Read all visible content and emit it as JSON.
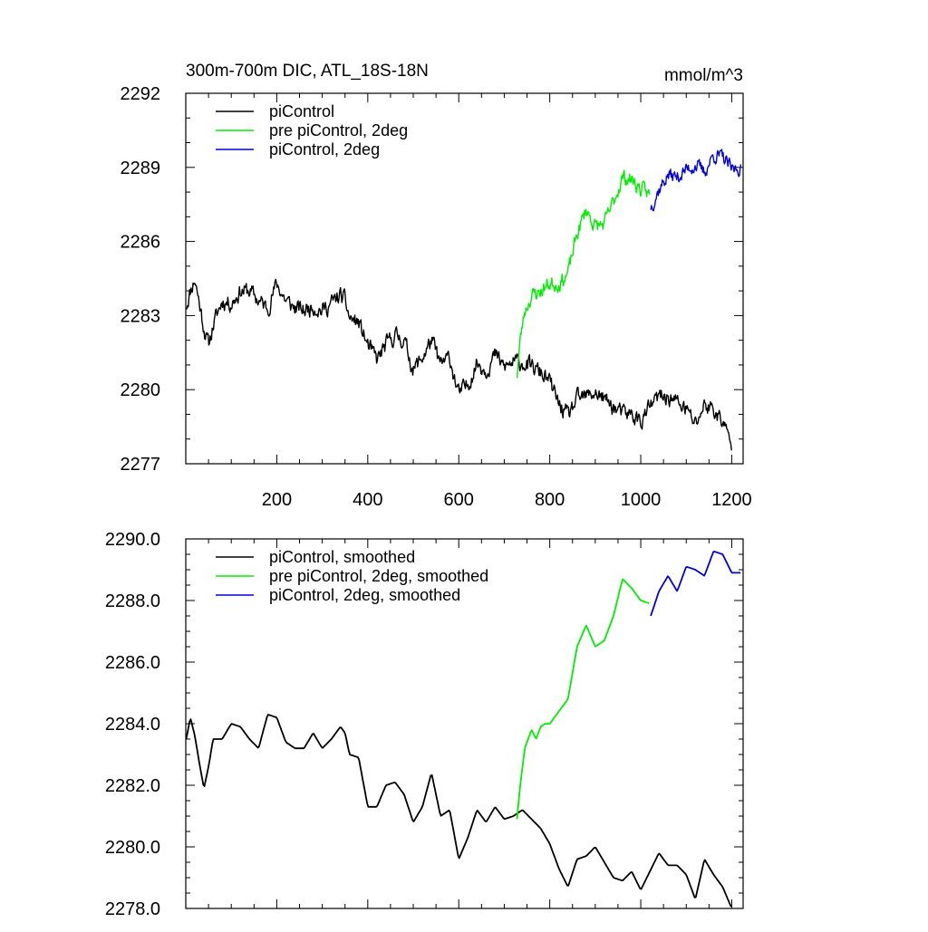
{
  "colors": {
    "piControl": "#000000",
    "pre": "#00ee00",
    "twodeg": "#0000e0",
    "axis": "#000000"
  },
  "chart_data": [
    {
      "type": "line",
      "title": "300m-700m DIC, ATL_18S-18N",
      "units": "mmol/m^3",
      "xlabel": "",
      "ylabel": "",
      "xlim": [
        0,
        1225
      ],
      "ylim": [
        2277,
        2292
      ],
      "xticks": [
        200,
        400,
        600,
        800,
        1000,
        1200
      ],
      "xtick_labels": [
        "200",
        "400",
        "600",
        "800",
        "1000",
        "1200"
      ],
      "yticks": [
        2277,
        2280,
        2283,
        2286,
        2289,
        2292
      ],
      "ytick_labels": [
        "2277",
        "2280",
        "2283",
        "2286",
        "2289",
        "2292"
      ],
      "legend_position": "top-left",
      "series": [
        {
          "name": "piControl",
          "color_key": "piControl",
          "noise": 0.35,
          "seed": 11,
          "x": [
            1,
            10,
            20,
            30,
            40,
            50,
            60,
            80,
            100,
            120,
            140,
            160,
            180,
            200,
            220,
            240,
            260,
            280,
            300,
            320,
            340,
            350,
            360,
            380,
            400,
            420,
            440,
            460,
            480,
            500,
            520,
            540,
            560,
            580,
            600,
            620,
            640,
            660,
            680,
            700,
            720,
            740,
            760,
            780,
            800,
            820,
            840,
            860,
            880,
            900,
            920,
            940,
            960,
            980,
            1000,
            1020,
            1040,
            1060,
            1080,
            1100,
            1120,
            1140,
            1160,
            1180,
            1200
          ],
          "y": [
            2283.4,
            2284.0,
            2284.5,
            2283.5,
            2282.5,
            2281.8,
            2282.6,
            2283.6,
            2283.5,
            2284.0,
            2284.0,
            2283.6,
            2283.3,
            2284.3,
            2283.6,
            2283.3,
            2283.2,
            2283.4,
            2283.2,
            2283.5,
            2283.8,
            2283.6,
            2282.9,
            2282.7,
            2281.8,
            2281.2,
            2281.8,
            2282.2,
            2282.0,
            2280.8,
            2281.3,
            2282.0,
            2281.0,
            2281.3,
            2279.8,
            2280.2,
            2281.1,
            2280.8,
            2281.4,
            2280.9,
            2281.1,
            2281.1,
            2280.9,
            2280.7,
            2280.3,
            2279.4,
            2278.9,
            2279.6,
            2279.7,
            2279.9,
            2279.6,
            2279.3,
            2279.0,
            2279.0,
            2278.7,
            2279.3,
            2279.7,
            2279.7,
            2279.5,
            2279.2,
            2278.6,
            2279.4,
            2279.2,
            2278.7,
            2277.7
          ]
        },
        {
          "name": "pre piControl, 2deg",
          "color_key": "pre",
          "noise": 0.32,
          "seed": 23,
          "x": [
            728,
            735,
            745,
            760,
            780,
            800,
            820,
            840,
            860,
            880,
            900,
            920,
            940,
            960,
            980,
            1000,
            1020
          ],
          "y": [
            2280.6,
            2282.0,
            2283.2,
            2283.8,
            2284.0,
            2284.3,
            2284.3,
            2284.7,
            2286.3,
            2287.3,
            2286.6,
            2286.7,
            2287.6,
            2288.6,
            2288.5,
            2288.1,
            2287.9
          ]
        },
        {
          "name": "piControl, 2deg",
          "color_key": "twodeg",
          "noise": 0.3,
          "seed": 37,
          "x": [
            1022,
            1040,
            1060,
            1080,
            1100,
            1120,
            1140,
            1160,
            1180,
            1200,
            1220
          ],
          "y": [
            2287.4,
            2288.1,
            2288.7,
            2288.6,
            2288.9,
            2289.1,
            2288.8,
            2289.5,
            2289.4,
            2288.9,
            2289.0
          ]
        }
      ]
    },
    {
      "type": "line",
      "title": "",
      "units": "",
      "xlabel": "",
      "ylabel": "",
      "xlim": [
        0,
        1225
      ],
      "ylim": [
        2278,
        2290
      ],
      "xticks": [
        200,
        400,
        600,
        800,
        1000,
        1200
      ],
      "xtick_labels": [],
      "yticks": [
        2278,
        2280,
        2282,
        2284,
        2286,
        2288,
        2290
      ],
      "ytick_labels": [
        "2278.0",
        "2280.0",
        "2282.0",
        "2284.0",
        "2286.0",
        "2288.0",
        "2290.0"
      ],
      "legend_position": "top-left",
      "series": [
        {
          "name": "piControl, smoothed",
          "color_key": "piControl",
          "noise": 0,
          "seed": 0,
          "x": [
            1,
            10,
            20,
            30,
            40,
            50,
            60,
            80,
            100,
            120,
            140,
            160,
            180,
            200,
            220,
            240,
            260,
            280,
            300,
            320,
            340,
            350,
            360,
            380,
            400,
            420,
            440,
            460,
            480,
            500,
            520,
            540,
            560,
            580,
            600,
            620,
            640,
            660,
            680,
            700,
            720,
            740,
            760,
            780,
            800,
            820,
            840,
            860,
            880,
            900,
            920,
            940,
            960,
            980,
            1000,
            1020,
            1040,
            1060,
            1080,
            1100,
            1120,
            1140,
            1160,
            1180,
            1200
          ],
          "y": [
            2283.5,
            2284.2,
            2283.6,
            2282.7,
            2281.9,
            2282.6,
            2283.5,
            2283.5,
            2284.0,
            2283.9,
            2283.5,
            2283.2,
            2284.3,
            2284.2,
            2283.4,
            2283.2,
            2283.2,
            2283.7,
            2283.2,
            2283.5,
            2283.9,
            2283.7,
            2283.0,
            2282.9,
            2281.3,
            2281.3,
            2282.0,
            2282.1,
            2281.7,
            2280.8,
            2281.3,
            2282.4,
            2281.0,
            2281.2,
            2279.6,
            2280.3,
            2281.2,
            2280.8,
            2281.3,
            2280.9,
            2281.0,
            2281.2,
            2280.9,
            2280.6,
            2280.1,
            2279.3,
            2278.7,
            2279.6,
            2279.7,
            2280.0,
            2279.5,
            2279.0,
            2278.9,
            2279.2,
            2278.6,
            2279.2,
            2279.8,
            2279.4,
            2279.4,
            2279.1,
            2278.3,
            2279.6,
            2279.1,
            2278.7,
            2278.0
          ]
        },
        {
          "name": "pre piControl, 2deg, smoothed",
          "color_key": "pre",
          "noise": 0,
          "seed": 0,
          "x": [
            728,
            735,
            745,
            760,
            770,
            780,
            790,
            800,
            820,
            840,
            860,
            880,
            900,
            920,
            940,
            960,
            980,
            1000,
            1020
          ],
          "y": [
            2280.9,
            2282.0,
            2283.2,
            2283.8,
            2283.5,
            2283.9,
            2284.0,
            2284.0,
            2284.4,
            2284.8,
            2286.5,
            2287.2,
            2286.5,
            2286.7,
            2287.5,
            2288.7,
            2288.4,
            2288.0,
            2287.9
          ]
        },
        {
          "name": "piControl, 2deg, smoothed",
          "color_key": "twodeg",
          "noise": 0,
          "seed": 0,
          "x": [
            1022,
            1040,
            1060,
            1080,
            1100,
            1120,
            1140,
            1160,
            1180,
            1200,
            1220
          ],
          "y": [
            2287.5,
            2288.3,
            2288.8,
            2288.3,
            2289.1,
            2289.0,
            2288.8,
            2289.6,
            2289.5,
            2288.9,
            2288.9
          ]
        }
      ]
    }
  ]
}
